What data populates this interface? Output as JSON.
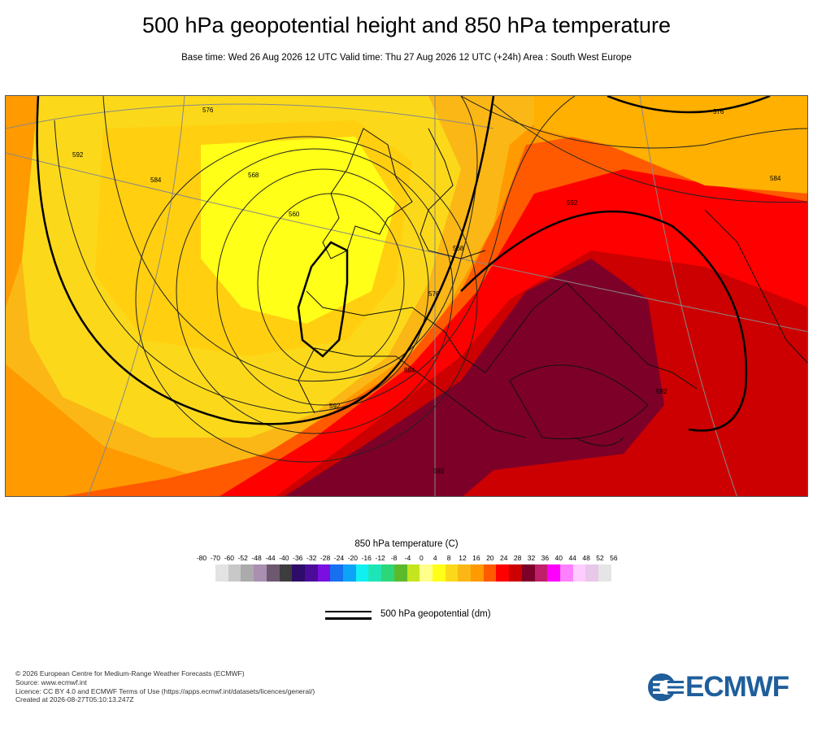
{
  "title": "500 hPa geopotential height and 850 hPa temperature",
  "subtitle": "Base time: Wed 26 Aug 2026 12 UTC Valid time: Thu 27 Aug 2026 12 UTC (+24h) Area : South West Europe",
  "map": {
    "region": "South West Europe",
    "contour_labels": [
      "576",
      "568",
      "560",
      "584",
      "592",
      "576",
      "584",
      "592",
      "568",
      "576",
      "584",
      "592",
      "592",
      "592"
    ]
  },
  "colorbar": {
    "title": "850 hPa temperature (C)",
    "ticks": [
      "-80",
      "-70",
      "-60",
      "-52",
      "-48",
      "-44",
      "-40",
      "-36",
      "-32",
      "-28",
      "-24",
      "-20",
      "-16",
      "-12",
      "-8",
      "-4",
      "0",
      "4",
      "8",
      "12",
      "16",
      "20",
      "24",
      "28",
      "32",
      "36",
      "40",
      "44",
      "48",
      "52",
      "56"
    ],
    "colors": [
      "#e3e3e3",
      "#c8c8c8",
      "#ababab",
      "#aa8fb1",
      "#6d586f",
      "#3d3d3d",
      "#2e0c6a",
      "#4b0c9a",
      "#7a0fe0",
      "#1670f0",
      "#0ca4f7",
      "#10f0f0",
      "#1de5b7",
      "#2ed67a",
      "#5cba2a",
      "#c5e51e",
      "#ffff8c",
      "#ffff18",
      "#fbd91a",
      "#fbb715",
      "#ff9a00",
      "#ff5a00",
      "#ff0000",
      "#cc0000",
      "#7d0029",
      "#c0206a",
      "#ff00ff",
      "#ff80ff",
      "#ffccff",
      "#e8c8e8",
      "#e5e5e5"
    ]
  },
  "geopotential_legend": "500 hPa geopotential (dm)",
  "footer": {
    "line1": "© 2026 European Centre for Medium-Range Weather Forecasts (ECMWF)",
    "line2": "Source: www.ecmwf.int",
    "line3": "Licence: CC BY 4.0 and ECMWF Terms of Use (https://apps.ecmwf.int/datasets/licences/general/)",
    "line4": "Created at 2026-08-27T05:10:13.247Z"
  },
  "logo_text": "ECMWF",
  "colors": {
    "brand": "#1f5e9b"
  }
}
